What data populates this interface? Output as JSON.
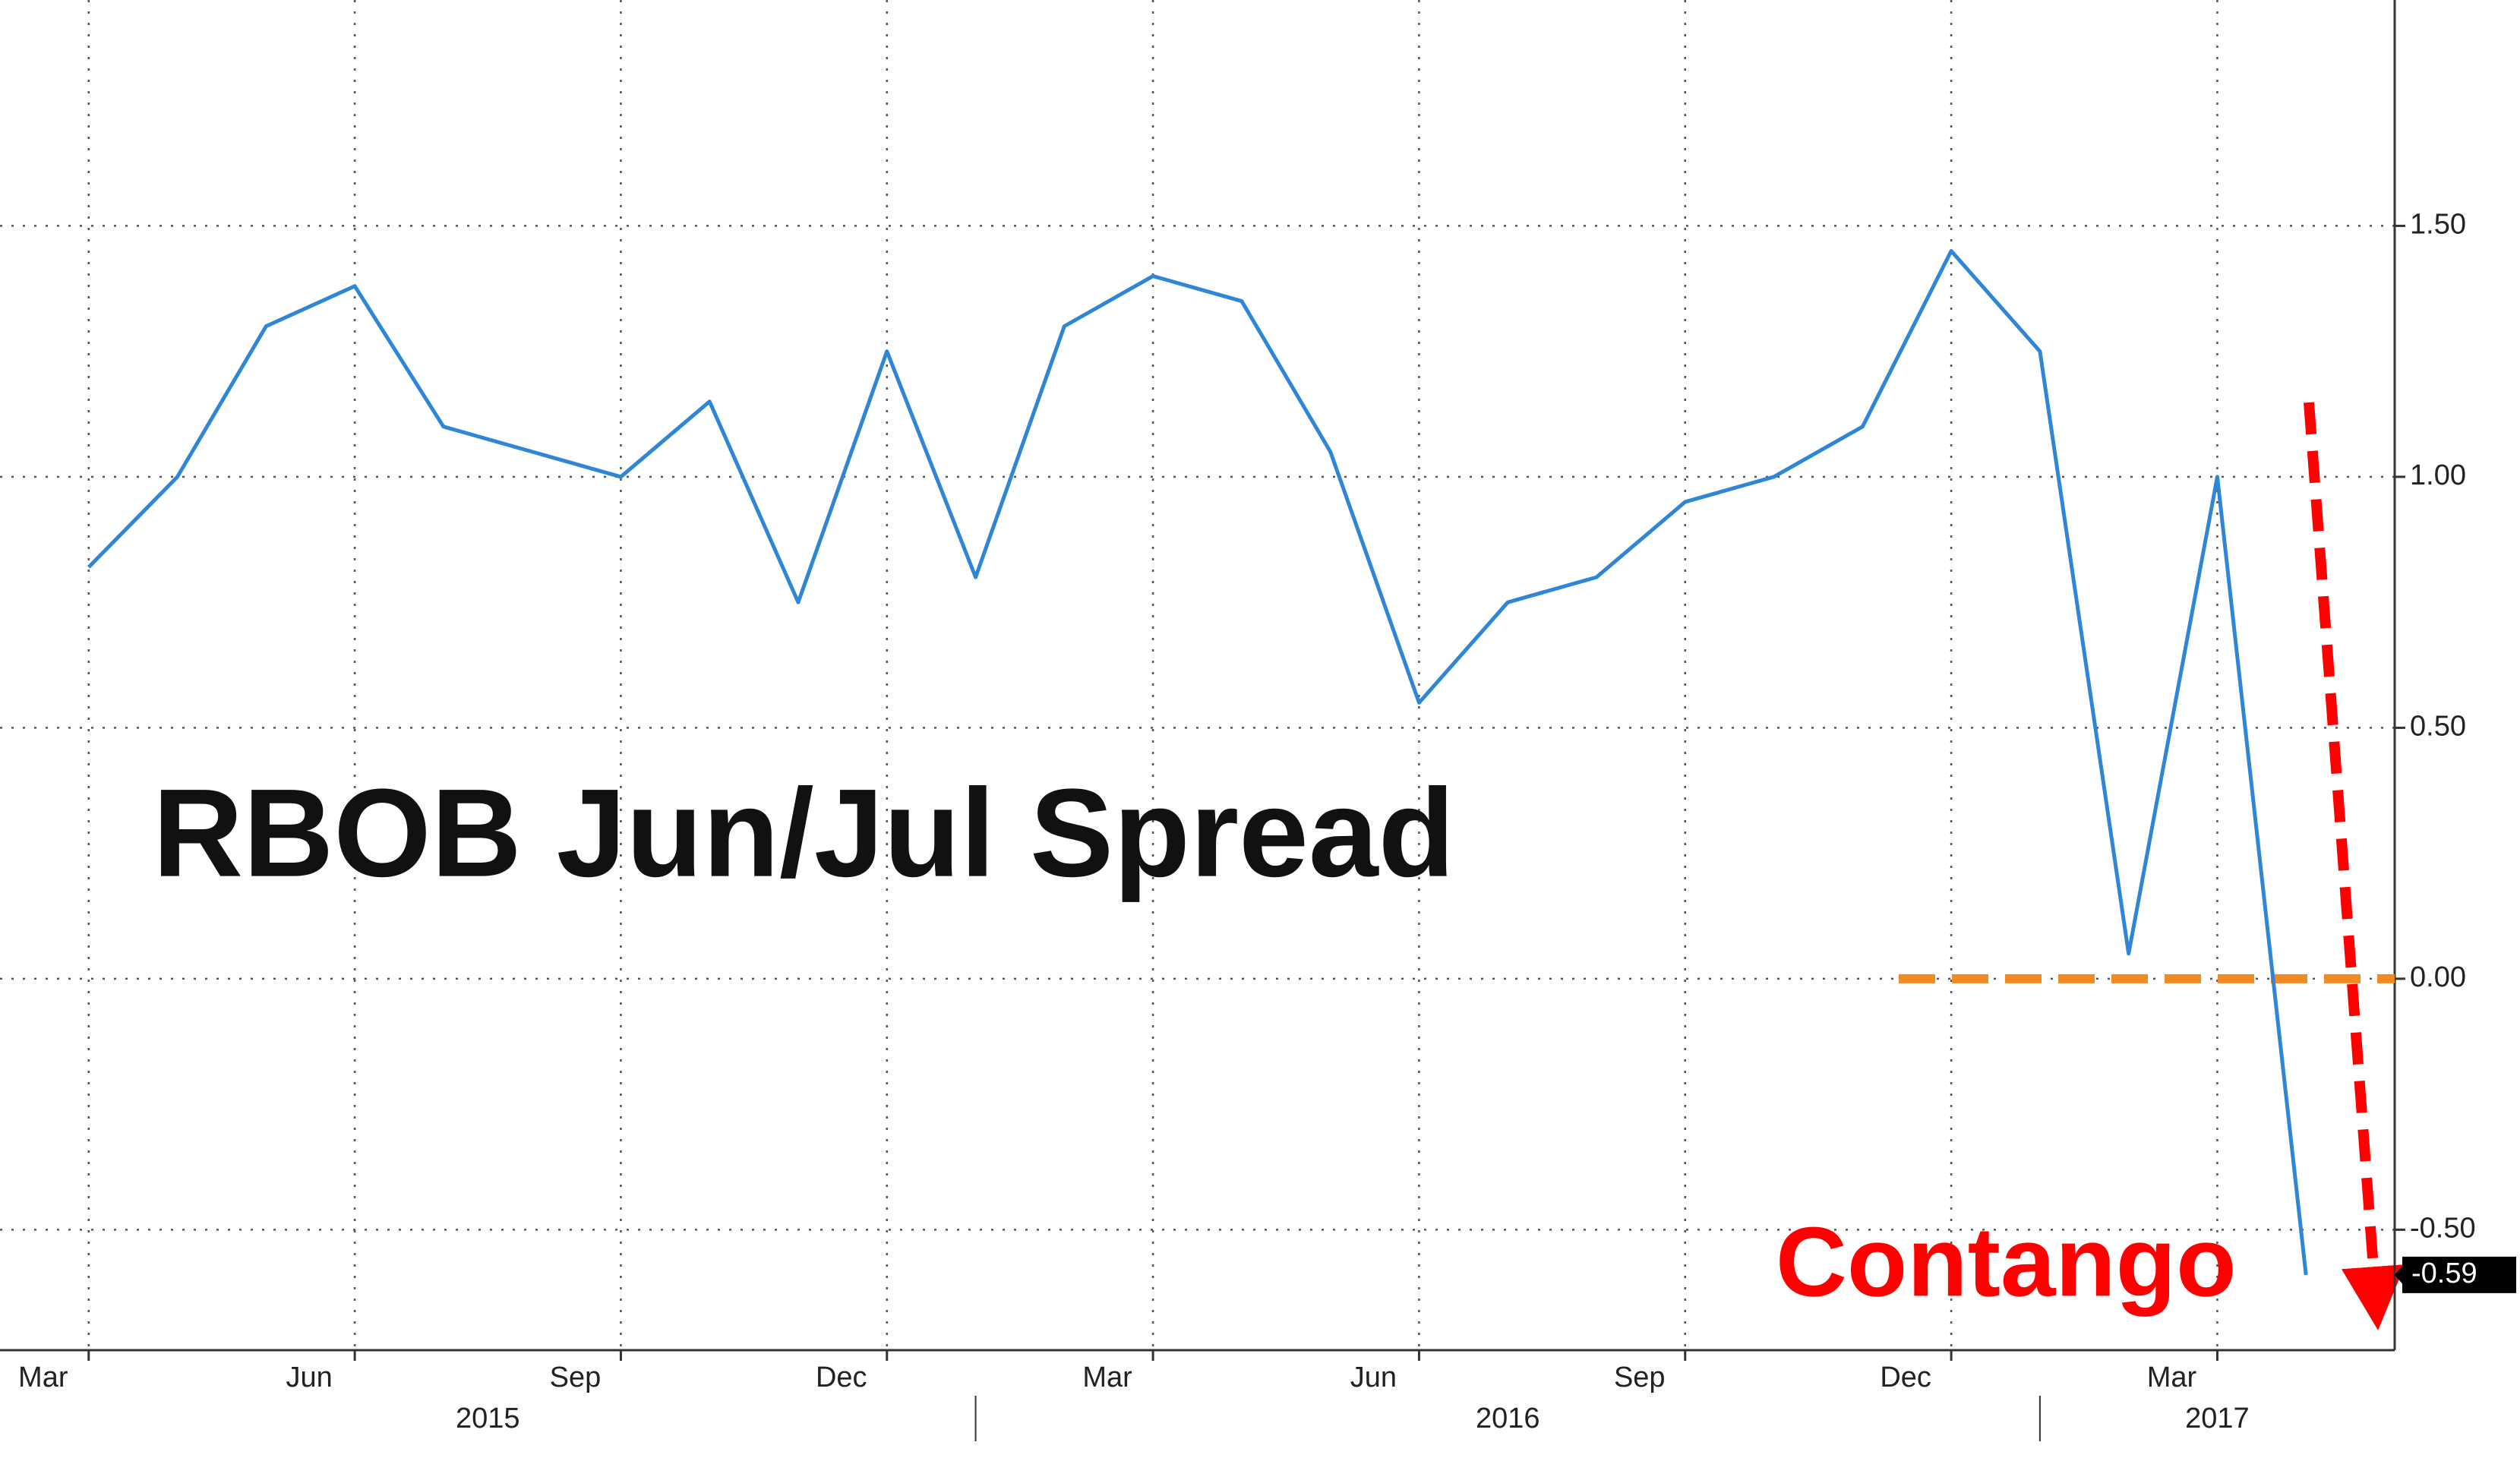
{
  "chart_data": {
    "type": "line",
    "title": "RBOB Jun/Jul Spread",
    "annotation": "Contango",
    "x": [
      "2015-03",
      "2015-04",
      "2015-05",
      "2015-06",
      "2015-07",
      "2015-08",
      "2015-09",
      "2015-10",
      "2015-11",
      "2015-12",
      "2016-01",
      "2016-02",
      "2016-03",
      "2016-04",
      "2016-05",
      "2016-06",
      "2016-07",
      "2016-08",
      "2016-09",
      "2016-10",
      "2016-11",
      "2016-12",
      "2017-01",
      "2017-02",
      "2017-03",
      "2017-04"
    ],
    "series": [
      {
        "name": "RBOB Jun/Jul Spread",
        "color": "#2f86d6",
        "values": [
          0.82,
          1.0,
          1.3,
          1.38,
          1.1,
          1.05,
          1.0,
          1.15,
          0.75,
          1.25,
          0.8,
          1.3,
          1.4,
          1.35,
          1.05,
          0.55,
          0.75,
          0.8,
          0.95,
          1.0,
          1.1,
          1.45,
          1.25,
          0.05,
          1.0,
          -0.59
        ]
      }
    ],
    "xlim": [
      "2015-02",
      "2017-05"
    ],
    "xticks": [
      {
        "value": "2015-03",
        "label": "Mar"
      },
      {
        "value": "2015-06",
        "label": "Jun"
      },
      {
        "value": "2015-09",
        "label": "Sep"
      },
      {
        "value": "2015-12",
        "label": "Dec"
      },
      {
        "value": "2016-03",
        "label": "Mar"
      },
      {
        "value": "2016-06",
        "label": "Jun"
      },
      {
        "value": "2016-09",
        "label": "Sep"
      },
      {
        "value": "2016-12",
        "label": "Dec"
      },
      {
        "value": "2017-03",
        "label": "Mar"
      }
    ],
    "years": [
      "2015",
      "2016",
      "2017"
    ],
    "ylim": [
      -0.74,
      1.95
    ],
    "yticks": [
      {
        "value": -0.5,
        "label": "-0.50"
      },
      {
        "value": 0,
        "label": "0.00"
      },
      {
        "value": 0.5,
        "label": "0.50"
      },
      {
        "value": 1,
        "label": "1.00"
      },
      {
        "value": 1.5,
        "label": "1.50"
      }
    ],
    "grid": true,
    "reference_line": {
      "value": 0,
      "color": "#f08a24"
    }
  }
}
